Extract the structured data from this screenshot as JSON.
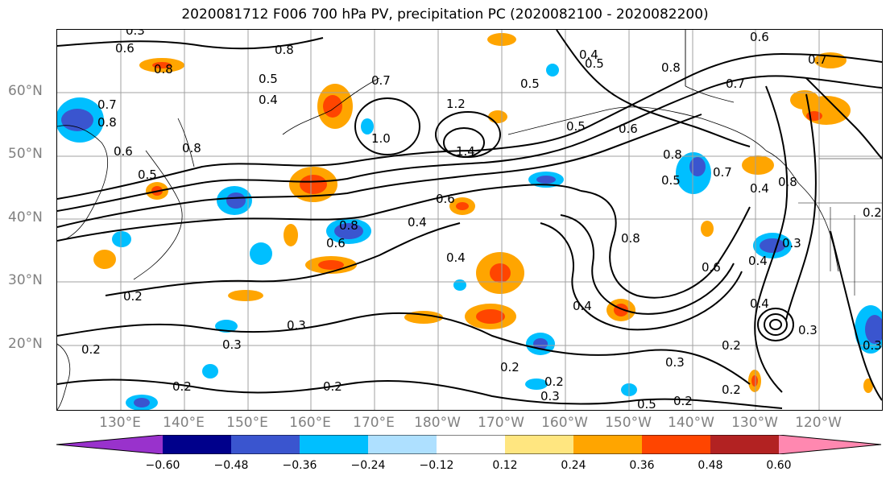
{
  "title": "2020081712 F006 700 hPa PV, precipitation PC (2020082100 - 2020082200)",
  "lat_labels": [
    "60°N",
    "50°N",
    "40°N",
    "30°N",
    "20°N"
  ],
  "lon_labels": [
    "130°E",
    "140°E",
    "150°E",
    "160°E",
    "170°E",
    "180°W",
    "170°W",
    "160°W",
    "150°W",
    "140°W",
    "130°W",
    "120°W"
  ],
  "colorbar": {
    "ticks": [
      "−0.60",
      "−0.48",
      "−0.36",
      "−0.24",
      "−0.12",
      "0.12",
      "0.24",
      "0.36",
      "0.48",
      "0.60"
    ],
    "colors": [
      "#9932cc",
      "#00008b",
      "#3a55cf",
      "#00bfff",
      "#aee0ff",
      "#ffffff",
      "#ffe680",
      "#ffa500",
      "#ff4500",
      "#b22222",
      "#ff88b0"
    ]
  },
  "contour_labels": [
    "0.3",
    "0.6",
    "0.8",
    "0.8",
    "0.6",
    "0.4",
    "0.5",
    "0.7",
    "0.8",
    "0.5",
    "0.7",
    "0.8",
    "0.4",
    "0.5",
    "0.7",
    "1.0",
    "1.2",
    "1.4",
    "0.5",
    "0.6",
    "0.8",
    "0.7",
    "0.8",
    "0.6",
    "0.8",
    "0.5",
    "0.6",
    "0.4",
    "0.8",
    "0.4",
    "0.5",
    "0.7",
    "0.6",
    "0.4",
    "0.8",
    "0.6",
    "0.4",
    "0.2",
    "0.2",
    "0.2",
    "0.3",
    "0.3",
    "0.2",
    "0.2",
    "0.3",
    "0.2",
    "0.2",
    "0.3",
    "0.5",
    "0.2",
    "0.3",
    "0.4",
    "0.2",
    "0.4",
    "0.3",
    "0.3",
    "0.2"
  ]
}
